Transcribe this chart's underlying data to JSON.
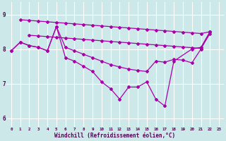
{
  "bg_color": "#cce8e8",
  "line_color": "#aa00aa",
  "grid_color": "#ffffff",
  "ylabel_vals": [
    6,
    7,
    8,
    9
  ],
  "xlabel": "Windchill (Refroidissement éolien,°C)",
  "ylim": [
    5.75,
    9.35
  ],
  "xlim": [
    -0.5,
    23.5
  ],
  "s1_x": [
    1,
    2,
    3,
    4,
    5,
    6,
    7,
    8,
    9,
    10,
    11,
    12,
    13,
    14,
    15,
    16,
    17,
    18,
    19,
    20,
    21,
    22
  ],
  "s1_y": [
    8.85,
    8.83,
    8.81,
    8.79,
    8.77,
    8.75,
    8.73,
    8.71,
    8.69,
    8.67,
    8.65,
    8.63,
    8.61,
    8.59,
    8.57,
    8.55,
    8.53,
    8.51,
    8.49,
    8.47,
    8.45,
    8.5
  ],
  "s2_x": [
    2,
    3,
    4,
    5,
    6,
    7,
    8,
    9,
    10,
    11,
    12,
    13,
    14,
    15,
    16,
    17,
    18,
    19,
    20,
    21,
    22
  ],
  "s2_y": [
    8.4,
    8.38,
    8.36,
    8.34,
    8.32,
    8.3,
    8.28,
    8.26,
    8.24,
    8.22,
    8.2,
    8.18,
    8.16,
    8.14,
    8.12,
    8.1,
    8.08,
    8.06,
    8.04,
    8.02,
    8.45
  ],
  "s3_x": [
    0,
    1,
    2,
    3,
    4,
    5,
    6,
    7,
    8,
    9,
    10,
    11,
    12,
    13,
    14,
    15,
    16,
    17,
    18,
    19,
    20,
    21,
    22
  ],
  "s3_y": [
    7.95,
    8.2,
    8.1,
    8.05,
    7.95,
    8.65,
    8.05,
    7.95,
    7.85,
    7.75,
    7.65,
    7.55,
    7.48,
    7.42,
    7.38,
    7.35,
    7.65,
    7.62,
    7.7,
    7.68,
    7.6,
    8.0,
    8.5
  ],
  "s4_x": [
    0,
    1,
    2,
    3,
    4,
    5,
    6,
    7,
    8,
    9,
    10,
    11,
    12,
    13,
    14,
    15,
    16,
    17,
    18,
    20,
    21,
    22
  ],
  "s4_y": [
    7.95,
    8.2,
    8.1,
    8.05,
    7.95,
    8.65,
    7.75,
    7.65,
    7.5,
    7.35,
    7.05,
    6.85,
    6.55,
    6.9,
    6.9,
    7.05,
    6.55,
    6.35,
    7.65,
    8.0,
    8.05,
    8.5
  ]
}
